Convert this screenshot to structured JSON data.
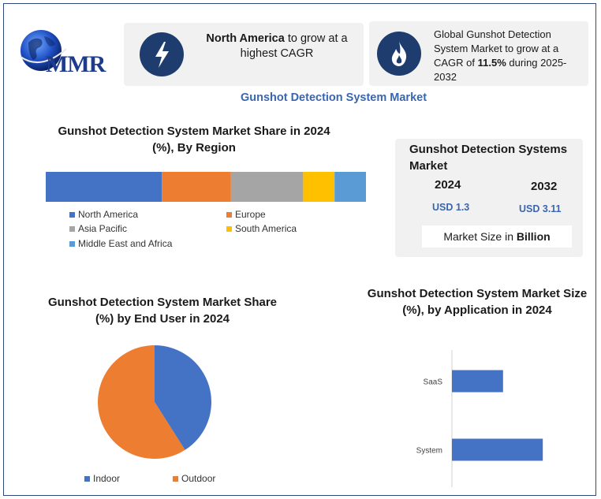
{
  "logo": {
    "text": "MMR"
  },
  "highlights": [
    {
      "icon": "lightning-icon",
      "bold": "North America",
      "rest": " to grow at a highest CAGR"
    },
    {
      "icon": "flame-icon",
      "pre": "Global Gunshot Detection System Market to grow at a CAGR of ",
      "bold": "11.5%",
      "post": " during 2025-2032"
    }
  ],
  "main_title": "Gunshot Detection System Market",
  "market_size": {
    "title": "Gunshot Detection Systems Market",
    "year1": "2024",
    "value1": "USD 1.3",
    "year2": "2032",
    "value2": "USD 3.11",
    "unit_pre": "Market Size in ",
    "unit_bold": "Billion"
  },
  "colors": {
    "north_america": "#4472c4",
    "europe": "#ed7d31",
    "asia_pacific": "#a5a5a5",
    "south_america": "#ffc000",
    "mea": "#5b9bd5",
    "icon_bg": "#1e3d6e",
    "title_blue": "#3a66b0"
  },
  "chart_data": [
    {
      "type": "bar",
      "orientation": "stacked-horizontal",
      "title": "Gunshot Detection System Market Share in 2024 (%), By Region",
      "categories": [
        "North America",
        "Europe",
        "Asia Pacific",
        "South America",
        "Middle East and Africa"
      ],
      "values": [
        37,
        22,
        23,
        10,
        10
      ],
      "colors": [
        "#4472c4",
        "#ed7d31",
        "#a5a5a5",
        "#ffc000",
        "#5b9bd5"
      ],
      "legend": "bottom"
    },
    {
      "type": "pie",
      "title": "Gunshot Detection System Market Share (%) by End User in 2024",
      "categories": [
        "Indoor",
        "Outdoor"
      ],
      "values": [
        41,
        59
      ],
      "colors": [
        "#4472c4",
        "#ed7d31"
      ],
      "legend": "bottom"
    },
    {
      "type": "bar",
      "orientation": "horizontal",
      "title": "Gunshot Detection System Market Size (%), by Application in 2024",
      "categories": [
        "SaaS",
        "System"
      ],
      "values": [
        36,
        64
      ],
      "xlim": [
        0,
        100
      ],
      "colors": [
        "#4472c4"
      ],
      "grid": false
    }
  ]
}
